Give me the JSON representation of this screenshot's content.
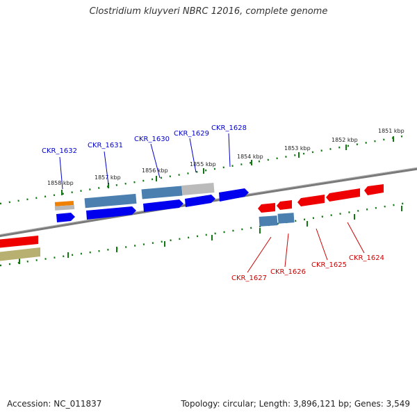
{
  "title": "Clostridium kluyveri NBRC 12016, complete genome",
  "footer": {
    "accession": "Accession: NC_011837",
    "summary": "Topology: circular; Length: 3,896,121 bp; Genes: 3,549"
  },
  "scale_labels": [
    "1858 kbp",
    "1857 kbp",
    "1856 kbp",
    "1855 kbp",
    "1854 kbp",
    "1853 kbp",
    "1852 kbp",
    "1851 kbp"
  ],
  "genes_forward": [
    "CKR_1632",
    "CKR_1631",
    "CKR_1630",
    "CKR_1629",
    "CKR_1628"
  ],
  "genes_reverse": [
    "CKR_1627",
    "CKR_1626",
    "CKR_1625",
    "CKR_1624"
  ],
  "colors": {
    "forward_label": "#0000cc",
    "reverse_label": "#cc0000",
    "forward_gene": "#0000ee",
    "reverse_gene": "#ee0000",
    "steel_blue": "#4682b4",
    "gray": "#aaaaaa",
    "orange": "#f08000",
    "olive": "#b8b070",
    "tick": "#117711",
    "backbone": "#777777"
  }
}
